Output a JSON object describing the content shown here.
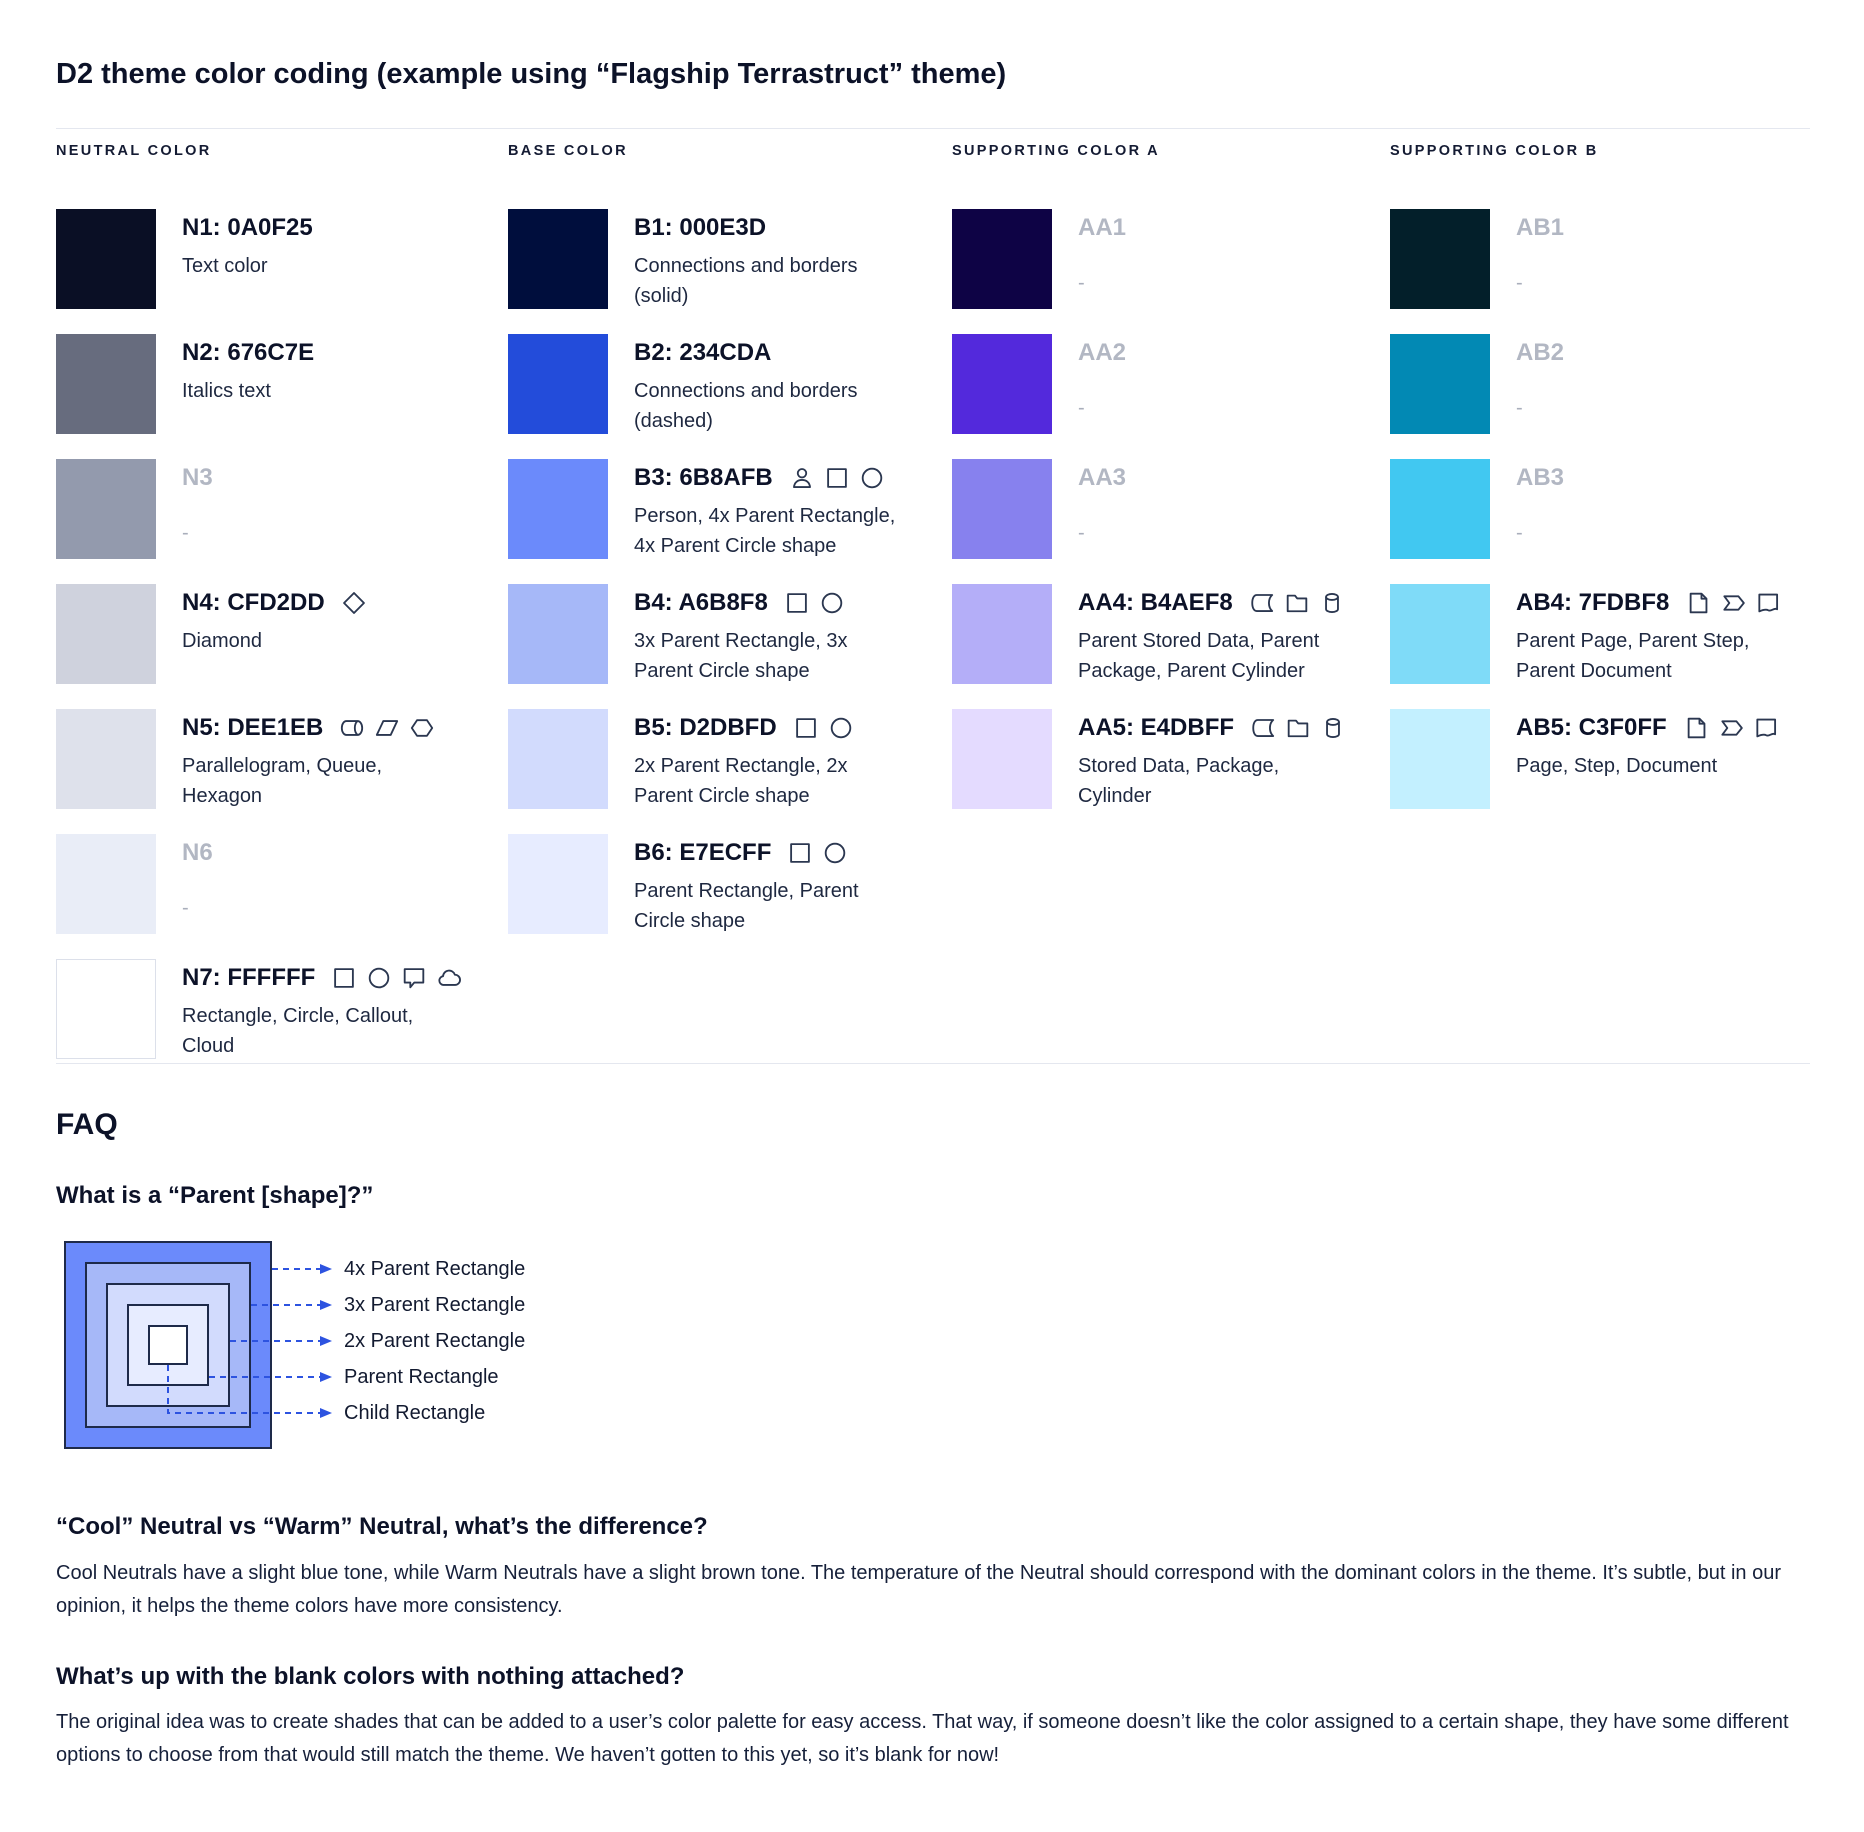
{
  "page": {
    "title": "D2 theme color coding (example using “Flagship Terrastruct” theme)"
  },
  "palette": {
    "columns": [
      {
        "header": "NEUTRAL COLOR",
        "swatches": [
          {
            "label": "N1: 0A0F25",
            "color": "#0A0F25",
            "desc": "Text color",
            "icons": []
          },
          {
            "label": "N2: 676C7E",
            "color": "#676C7E",
            "desc": "Italics text",
            "icons": []
          },
          {
            "label": "N3",
            "color": "#939AAD",
            "desc": "-",
            "muted": true,
            "icons": []
          },
          {
            "label": "N4: CFD2DD",
            "color": "#CFD2DD",
            "desc": "Diamond",
            "icons": [
              "diamond-icon"
            ]
          },
          {
            "label": "N5: DEE1EB",
            "color": "#DEE1EB",
            "desc": "Parallelogram, Queue, Hexagon",
            "icons": [
              "queue-icon",
              "parallelogram-icon",
              "hexagon-icon"
            ]
          },
          {
            "label": "N6",
            "color": "#E9EDF7",
            "desc": "-",
            "muted": true,
            "icons": []
          },
          {
            "label": "N7: FFFFFF",
            "color": "#FFFFFF",
            "desc": "Rectangle, Circle, Callout, Cloud",
            "icons": [
              "rectangle-icon",
              "circle-icon",
              "callout-icon",
              "cloud-icon"
            ]
          }
        ]
      },
      {
        "header": "BASE COLOR",
        "swatches": [
          {
            "label": "B1: 000E3D",
            "color": "#000E3D",
            "desc": "Connections and borders (solid)",
            "icons": []
          },
          {
            "label": "B2: 234CDA",
            "color": "#234CDA",
            "desc": "Connections and borders (dashed)",
            "icons": []
          },
          {
            "label": "B3: 6B8AFB",
            "color": "#6B8AFB",
            "desc": "Person, 4x Parent Rectangle, 4x Parent Circle shape",
            "icons": [
              "person-icon",
              "rectangle-icon",
              "circle-icon"
            ]
          },
          {
            "label": "B4: A6B8F8",
            "color": "#A6B8F8",
            "desc": "3x Parent Rectangle, 3x Parent Circle shape",
            "icons": [
              "rectangle-icon",
              "circle-icon"
            ]
          },
          {
            "label": "B5: D2DBFD",
            "color": "#D2DBFD",
            "desc": "2x Parent Rectangle, 2x Parent Circle shape",
            "icons": [
              "rectangle-icon",
              "circle-icon"
            ]
          },
          {
            "label": "B6: E7ECFF",
            "color": "#E7ECFF",
            "desc": "Parent Rectangle, Parent Circle shape",
            "icons": [
              "rectangle-icon",
              "circle-icon"
            ]
          }
        ]
      },
      {
        "header": "SUPPORTING COLOR A",
        "swatches": [
          {
            "label": "AA1",
            "color": "#0E0345",
            "desc": "-",
            "muted": true,
            "icons": []
          },
          {
            "label": "AA2",
            "color": "#5329DC",
            "desc": "-",
            "muted": true,
            "icons": []
          },
          {
            "label": "AA3",
            "color": "#8781EE",
            "desc": "-",
            "muted": true,
            "icons": []
          },
          {
            "label": "AA4: B4AEF8",
            "color": "#B4AEF8",
            "desc": "Parent Stored Data, Parent Package,  Parent Cylinder",
            "icons": [
              "stored-data-icon",
              "package-icon",
              "cylinder-icon"
            ]
          },
          {
            "label": "AA5: E4DBFF",
            "color": "#E4DBFF",
            "desc": "Stored Data, Package, Cylinder",
            "icons": [
              "stored-data-icon",
              "package-icon",
              "cylinder-icon"
            ]
          }
        ]
      },
      {
        "header": "SUPPORTING COLOR B",
        "swatches": [
          {
            "label": "AB1",
            "color": "#031F2A",
            "desc": "-",
            "muted": true,
            "icons": []
          },
          {
            "label": "AB2",
            "color": "#0289B4",
            "desc": "-",
            "muted": true,
            "icons": []
          },
          {
            "label": "AB3",
            "color": "#41C8F1",
            "desc": "-",
            "muted": true,
            "icons": []
          },
          {
            "label": "AB4: 7FDBF8",
            "color": "#7FDBF8",
            "desc": "Parent Page, Parent Step, Parent Document",
            "icons": [
              "page-icon",
              "step-icon",
              "document-icon"
            ]
          },
          {
            "label": "AB5: C3F0FF",
            "color": "#C3F0FF",
            "desc": "Page, Step, Document",
            "icons": [
              "page-icon",
              "step-icon",
              "document-icon"
            ]
          }
        ]
      }
    ]
  },
  "faq": {
    "heading": "FAQ",
    "q1": {
      "heading": "What is a “Parent [shape]?”",
      "labels": [
        "4x Parent Rectangle",
        "3x Parent Rectangle",
        "2x Parent Rectangle",
        "Parent Rectangle",
        "Child Rectangle"
      ],
      "diagram": {
        "colors": [
          "#6B8AFB",
          "#A6B8F8",
          "#D2DBFD",
          "#E7ECFF",
          "#FFFFFF"
        ],
        "border_color": "#1E2A4A",
        "arrow_color": "#2D53E0"
      }
    },
    "q2": {
      "heading": "“Cool” Neutral vs “Warm” Neutral, what’s the difference?",
      "body": "Cool Neutrals have a slight blue tone, while Warm Neutrals have a slight brown tone. The temperature of the Neutral should correspond with the dominant colors in the theme. It’s subtle, but in our opinion, it helps the theme colors have more consistency."
    },
    "q3": {
      "heading": "What’s up with the blank colors with nothing attached?",
      "body": "The original idea was to create shades that can be added to a user’s color palette for easy access. That way, if someone doesn’t like the color assigned to a certain shape, they have some different options to choose from that would still match the theme. We haven’t gotten to this yet, so it’s blank for now!"
    }
  }
}
